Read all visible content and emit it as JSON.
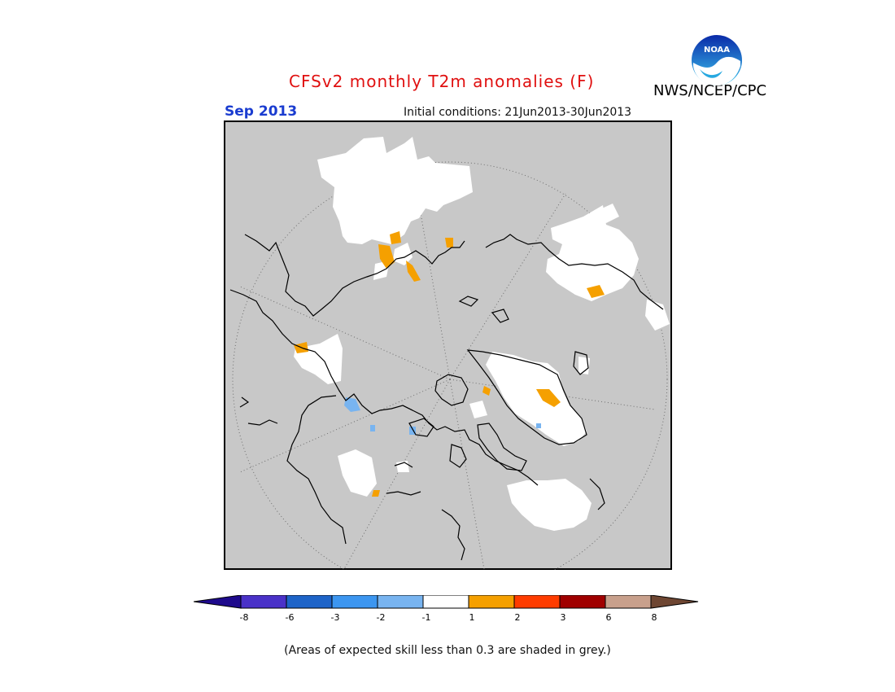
{
  "header": {
    "title": "CFSv2 monthly T2m anomalies (F)",
    "agency": "NWS/NCEP/CPC",
    "logo_text": "NOAA",
    "month": "Sep 2013",
    "initial_conditions": "Initial conditions: 21Jun2013-30Jun2013"
  },
  "colorbar": {
    "tick_labels": [
      "-8",
      "-6",
      "-3",
      "-2",
      "-1",
      "1",
      "2",
      "3",
      "6",
      "8"
    ],
    "colors": {
      "below_min": "#1e0a8c",
      "bins": [
        "#4a32c8",
        "#1e64c8",
        "#3c96f0",
        "#78b4f0",
        "#ffffff",
        "#f5a000",
        "#ff3c00",
        "#a00000",
        "#c8a08c"
      ],
      "above_max": "#6e4632"
    }
  },
  "map": {
    "projection": "north polar stereographic",
    "background_color": "#c8c8c8",
    "legend": {
      "near_normal": "#ffffff",
      "warm_1_2": "#f5a000",
      "cool_1_2": "#78b4f0"
    }
  },
  "footnote": "(Areas of expected skill less than 0.3 are shaded in grey.)"
}
